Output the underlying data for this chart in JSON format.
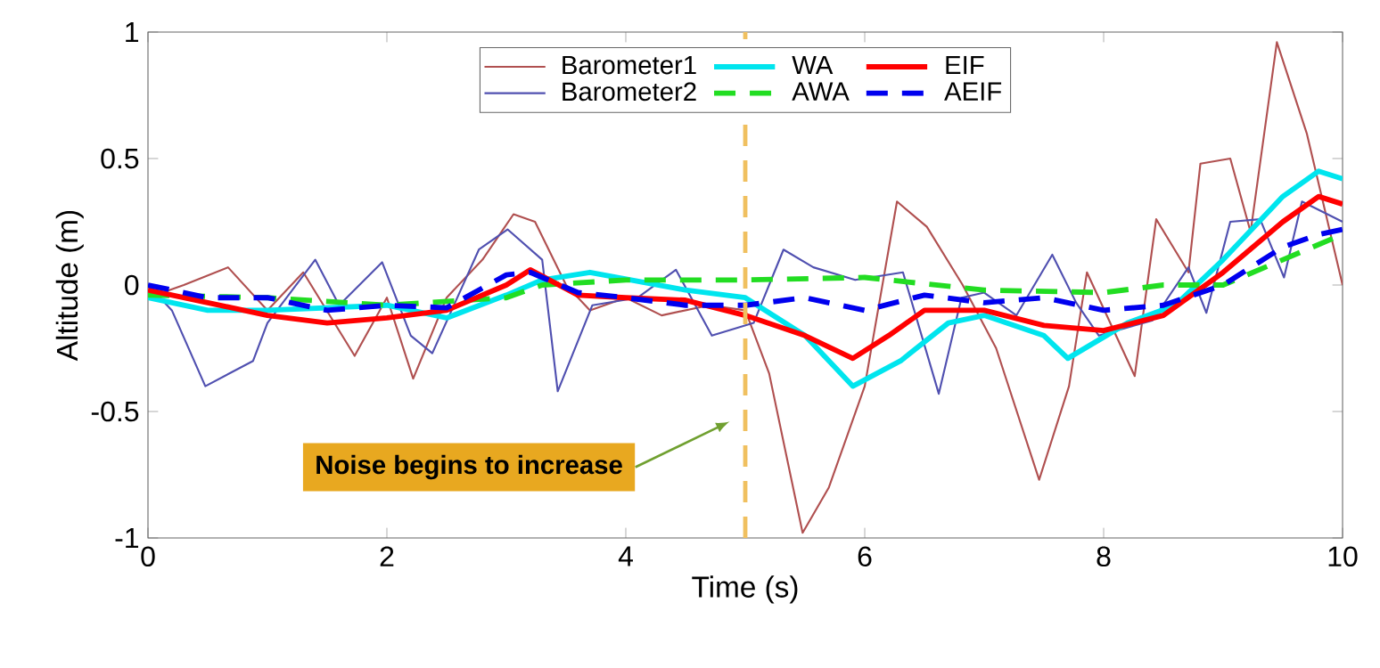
{
  "chart_data": {
    "type": "line",
    "xlabel": "Time (s)",
    "ylabel": "Altitude (m)",
    "xlim": [
      0,
      10
    ],
    "ylim": [
      -1,
      1
    ],
    "xticks": [
      0,
      2,
      4,
      6,
      8,
      10
    ],
    "yticks": [
      -1,
      -0.5,
      0,
      0.5,
      1
    ],
    "legend": "top",
    "grid": false,
    "series": [
      {
        "name": "Barometer1",
        "color": "#b05050",
        "line_style": "solid",
        "x": [
          0,
          0.3,
          0.67,
          1.0,
          1.3,
          1.73,
          2.0,
          2.22,
          2.5,
          2.8,
          3.06,
          3.24,
          3.5,
          3.7,
          4.0,
          4.3,
          4.7,
          5.0,
          5.2,
          5.48,
          5.7,
          6.0,
          6.27,
          6.52,
          6.82,
          7.1,
          7.46,
          7.71,
          7.86,
          8.26,
          8.44,
          8.71,
          8.81,
          9.06,
          9.23,
          9.45,
          9.7,
          9.85,
          10
        ],
        "values": [
          -0.05,
          0.0,
          0.07,
          -0.1,
          0.05,
          -0.28,
          -0.05,
          -0.37,
          -0.05,
          0.1,
          0.28,
          0.25,
          0.0,
          -0.1,
          -0.05,
          -0.12,
          -0.08,
          -0.1,
          -0.35,
          -0.98,
          -0.8,
          -0.4,
          0.33,
          0.23,
          0.0,
          -0.25,
          -0.77,
          -0.4,
          0.05,
          -0.36,
          0.26,
          0.05,
          0.48,
          0.5,
          0.21,
          0.96,
          0.6,
          0.3,
          0.0
        ]
      },
      {
        "name": "Barometer2",
        "color": "#5050b0",
        "line_style": "solid",
        "x": [
          0,
          0.2,
          0.48,
          0.88,
          1.0,
          1.4,
          1.6,
          1.96,
          2.2,
          2.38,
          2.77,
          3.01,
          3.3,
          3.43,
          3.72,
          4.1,
          4.42,
          4.72,
          5.07,
          5.32,
          5.57,
          5.92,
          6.32,
          6.62,
          6.81,
          7.0,
          7.27,
          7.57,
          7.77,
          7.96,
          8.41,
          8.71,
          8.86,
          9.06,
          9.31,
          9.51,
          9.66,
          10
        ],
        "values": [
          0.0,
          -0.1,
          -0.4,
          -0.3,
          -0.15,
          0.1,
          -0.08,
          0.09,
          -0.2,
          -0.27,
          0.14,
          0.22,
          0.1,
          -0.42,
          -0.08,
          -0.05,
          0.06,
          -0.2,
          -0.15,
          0.14,
          0.07,
          0.02,
          0.05,
          -0.43,
          -0.05,
          -0.03,
          -0.12,
          0.12,
          -0.07,
          -0.2,
          -0.14,
          0.07,
          -0.11,
          0.25,
          0.26,
          0.03,
          0.33,
          0.25
        ]
      },
      {
        "name": "WA",
        "color": "#00e5ee",
        "line_style": "solid",
        "x": [
          0,
          0.5,
          1,
          2,
          2.5,
          3,
          3.3,
          3.7,
          4.5,
          5,
          5.5,
          5.9,
          6.3,
          6.7,
          7,
          7.5,
          7.7,
          8.2,
          8.6,
          9,
          9.5,
          9.8,
          10
        ],
        "values": [
          -0.05,
          -0.1,
          -0.1,
          -0.08,
          -0.13,
          -0.04,
          0.02,
          0.05,
          -0.02,
          -0.05,
          -0.2,
          -0.4,
          -0.3,
          -0.15,
          -0.12,
          -0.2,
          -0.29,
          -0.15,
          -0.08,
          0.1,
          0.35,
          0.45,
          0.42
        ]
      },
      {
        "name": "AWA",
        "color": "#22dd22",
        "line_style": "dashed",
        "x": [
          0,
          1,
          2,
          3,
          3.3,
          4,
          5,
          6,
          7,
          8,
          8.5,
          9,
          9.5,
          10
        ],
        "values": [
          -0.04,
          -0.05,
          -0.08,
          -0.05,
          0.0,
          0.02,
          0.02,
          0.03,
          -0.02,
          -0.03,
          0.0,
          0.0,
          0.1,
          0.2
        ]
      },
      {
        "name": "EIF",
        "color": "#ff0000",
        "line_style": "solid",
        "x": [
          0,
          0.5,
          1,
          1.5,
          2,
          2.5,
          3,
          3.2,
          3.6,
          4,
          4.5,
          5,
          5.5,
          5.9,
          6.2,
          6.5,
          7,
          7.5,
          8,
          8.5,
          9,
          9.5,
          9.8,
          10
        ],
        "values": [
          -0.02,
          -0.07,
          -0.12,
          -0.15,
          -0.13,
          -0.1,
          0.0,
          0.06,
          -0.04,
          -0.05,
          -0.06,
          -0.12,
          -0.2,
          -0.29,
          -0.2,
          -0.1,
          -0.1,
          -0.16,
          -0.18,
          -0.12,
          0.05,
          0.25,
          0.35,
          0.32
        ]
      },
      {
        "name": "AEIF",
        "color": "#0000ee",
        "line_style": "dashed",
        "x": [
          0,
          0.5,
          1,
          1.5,
          2,
          2.5,
          3,
          3.2,
          3.6,
          4,
          4.5,
          5,
          5.5,
          6,
          6.5,
          7,
          7.5,
          8,
          8.5,
          9,
          9.5,
          9.8,
          10
        ],
        "values": [
          0.0,
          -0.05,
          -0.05,
          -0.1,
          -0.08,
          -0.09,
          0.04,
          0.05,
          -0.03,
          -0.05,
          -0.08,
          -0.08,
          -0.05,
          -0.1,
          -0.04,
          -0.07,
          -0.05,
          -0.1,
          -0.08,
          0.0,
          0.15,
          0.2,
          0.22
        ]
      }
    ],
    "ref_lines": [
      {
        "axis": "x",
        "value": 5,
        "color": "#f0c060",
        "line_style": "dashed"
      }
    ],
    "annotations": [
      "Noise begins to increase"
    ]
  }
}
